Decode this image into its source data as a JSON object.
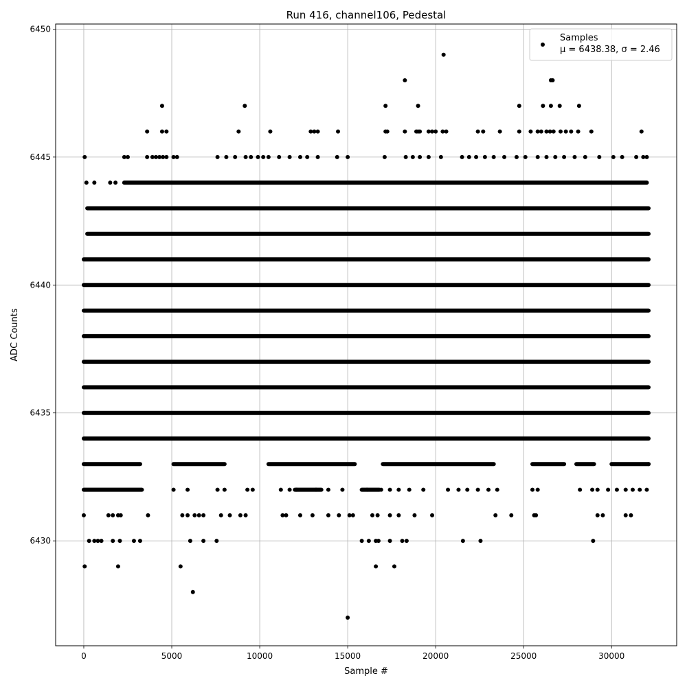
{
  "chart_data": {
    "type": "scatter",
    "title": "Run 416, channel106, Pedestal",
    "xlabel": "Sample #",
    "ylabel": "ADC Counts",
    "xlim": [
      -1600,
      33700
    ],
    "ylim": [
      6425.9,
      6450.2
    ],
    "x_ticks": [
      0,
      5000,
      10000,
      15000,
      20000,
      25000,
      30000
    ],
    "y_ticks": [
      6430,
      6435,
      6440,
      6445,
      6450
    ],
    "grid": true,
    "legend_position": "top-right",
    "marker_color": "#000000",
    "series": [
      {
        "name": "Samples",
        "legend_stats": "μ = 6438.38, σ = 2.46",
        "sample_count": 32100,
        "levels": [
          {
            "y": 6434,
            "x_ranges": [
              [
                0,
                32100
              ]
            ]
          },
          {
            "y": 6435,
            "x_ranges": [
              [
                0,
                32100
              ]
            ]
          },
          {
            "y": 6436,
            "x_ranges": [
              [
                0,
                32100
              ]
            ]
          },
          {
            "y": 6437,
            "x_ranges": [
              [
                0,
                32100
              ]
            ]
          },
          {
            "y": 6438,
            "x_ranges": [
              [
                0,
                32100
              ]
            ]
          },
          {
            "y": 6439,
            "x_ranges": [
              [
                0,
                32100
              ]
            ]
          },
          {
            "y": 6440,
            "x_ranges": [
              [
                0,
                32100
              ]
            ]
          },
          {
            "y": 6441,
            "x_ranges": [
              [
                0,
                32100
              ]
            ]
          },
          {
            "y": 6442,
            "x_ranges": [
              [
                200,
                32100
              ]
            ]
          }
        ],
        "points": [
          [
            50,
            6429
          ],
          [
            1950,
            6429
          ],
          [
            5500,
            6429
          ],
          [
            16600,
            6429
          ],
          [
            17650,
            6429
          ],
          [
            6200,
            6428
          ],
          [
            15000,
            6427
          ],
          [
            50,
            6445
          ],
          [
            20450,
            6449
          ],
          [
            18250,
            6448
          ],
          [
            26550,
            6448
          ],
          [
            26650,
            6448
          ],
          [
            4450,
            6447
          ],
          [
            9150,
            6447
          ],
          [
            17150,
            6447
          ],
          [
            19000,
            6447
          ],
          [
            24750,
            6447
          ],
          [
            26100,
            6447
          ],
          [
            26550,
            6447
          ],
          [
            27050,
            6447
          ],
          [
            28150,
            6447
          ],
          [
            3600,
            6446
          ],
          [
            4450,
            6446
          ],
          [
            4700,
            6446
          ],
          [
            8800,
            6446
          ],
          [
            10600,
            6446
          ],
          [
            12900,
            6446
          ],
          [
            13100,
            6446
          ],
          [
            13300,
            6446
          ],
          [
            14450,
            6446
          ],
          [
            17150,
            6446
          ],
          [
            17250,
            6446
          ],
          [
            18250,
            6446
          ],
          [
            18900,
            6446
          ],
          [
            19000,
            6446
          ],
          [
            19100,
            6446
          ],
          [
            19600,
            6446
          ],
          [
            19800,
            6446
          ],
          [
            20000,
            6446
          ],
          [
            20400,
            6446
          ],
          [
            20600,
            6446
          ],
          [
            22400,
            6446
          ],
          [
            22700,
            6446
          ],
          [
            23650,
            6446
          ],
          [
            24750,
            6446
          ],
          [
            25400,
            6446
          ],
          [
            25800,
            6446
          ],
          [
            26000,
            6446
          ],
          [
            26300,
            6446
          ],
          [
            26500,
            6446
          ],
          [
            26700,
            6446
          ],
          [
            27100,
            6446
          ],
          [
            27400,
            6446
          ],
          [
            27700,
            6446
          ],
          [
            28100,
            6446
          ],
          [
            28850,
            6446
          ],
          [
            31700,
            6446
          ],
          [
            2300,
            6445
          ],
          [
            2500,
            6445
          ],
          [
            3600,
            6445
          ],
          [
            3900,
            6445
          ],
          [
            4100,
            6445
          ],
          [
            4300,
            6445
          ],
          [
            4500,
            6445
          ],
          [
            4700,
            6445
          ],
          [
            5100,
            6445
          ],
          [
            5300,
            6445
          ],
          [
            7600,
            6445
          ],
          [
            8100,
            6445
          ],
          [
            8600,
            6445
          ],
          [
            9200,
            6445
          ],
          [
            9500,
            6445
          ],
          [
            9900,
            6445
          ],
          [
            10200,
            6445
          ],
          [
            10500,
            6445
          ],
          [
            11100,
            6445
          ],
          [
            11700,
            6445
          ],
          [
            12300,
            6445
          ],
          [
            12700,
            6445
          ],
          [
            13300,
            6445
          ],
          [
            14400,
            6445
          ],
          [
            15000,
            6445
          ],
          [
            17100,
            6445
          ],
          [
            18300,
            6445
          ],
          [
            18700,
            6445
          ],
          [
            19100,
            6445
          ],
          [
            19600,
            6445
          ],
          [
            20300,
            6445
          ],
          [
            21500,
            6445
          ],
          [
            21900,
            6445
          ],
          [
            22300,
            6445
          ],
          [
            22800,
            6445
          ],
          [
            23300,
            6445
          ],
          [
            23900,
            6445
          ],
          [
            24600,
            6445
          ],
          [
            25100,
            6445
          ],
          [
            25800,
            6445
          ],
          [
            26300,
            6445
          ],
          [
            26800,
            6445
          ],
          [
            27300,
            6445
          ],
          [
            27900,
            6445
          ],
          [
            28500,
            6445
          ],
          [
            29300,
            6445
          ],
          [
            30100,
            6445
          ],
          [
            30600,
            6445
          ],
          [
            31400,
            6445
          ],
          [
            31800,
            6445
          ],
          [
            32000,
            6445
          ],
          [
            300,
            6430
          ],
          [
            600,
            6430
          ],
          [
            800,
            6430
          ],
          [
            1000,
            6430
          ],
          [
            1650,
            6430
          ],
          [
            2050,
            6430
          ],
          [
            2850,
            6430
          ],
          [
            3200,
            6430
          ],
          [
            6050,
            6430
          ],
          [
            6800,
            6430
          ],
          [
            7550,
            6430
          ],
          [
            15800,
            6430
          ],
          [
            16200,
            6430
          ],
          [
            16600,
            6430
          ],
          [
            16750,
            6430
          ],
          [
            17400,
            6430
          ],
          [
            18100,
            6430
          ],
          [
            18350,
            6430
          ],
          [
            21550,
            6430
          ],
          [
            22550,
            6430
          ],
          [
            28950,
            6430
          ],
          [
            0,
            6431
          ],
          [
            1400,
            6431
          ],
          [
            1650,
            6431
          ],
          [
            1950,
            6431
          ],
          [
            2100,
            6431
          ],
          [
            3650,
            6431
          ],
          [
            5600,
            6431
          ],
          [
            5900,
            6431
          ],
          [
            6300,
            6431
          ],
          [
            6550,
            6431
          ],
          [
            6800,
            6431
          ],
          [
            7800,
            6431
          ],
          [
            8300,
            6431
          ],
          [
            8900,
            6431
          ],
          [
            9200,
            6431
          ],
          [
            11300,
            6431
          ],
          [
            11500,
            6431
          ],
          [
            12300,
            6431
          ],
          [
            13000,
            6431
          ],
          [
            13900,
            6431
          ],
          [
            14500,
            6431
          ],
          [
            15100,
            6431
          ],
          [
            15300,
            6431
          ],
          [
            16400,
            6431
          ],
          [
            16700,
            6431
          ],
          [
            17400,
            6431
          ],
          [
            17900,
            6431
          ],
          [
            18800,
            6431
          ],
          [
            19800,
            6431
          ],
          [
            23400,
            6431
          ],
          [
            24300,
            6431
          ],
          [
            25600,
            6431
          ],
          [
            25700,
            6431
          ],
          [
            29200,
            6431
          ],
          [
            29500,
            6431
          ],
          [
            30800,
            6431
          ],
          [
            31100,
            6431
          ],
          [
            5100,
            6432
          ],
          [
            5900,
            6432
          ],
          [
            7600,
            6432
          ],
          [
            8000,
            6432
          ],
          [
            9300,
            6432
          ],
          [
            9600,
            6432
          ],
          [
            11200,
            6432
          ],
          [
            11700,
            6432
          ],
          [
            12100,
            6432
          ],
          [
            13200,
            6432
          ],
          [
            13900,
            6432
          ],
          [
            14700,
            6432
          ],
          [
            16100,
            6432
          ],
          [
            16900,
            6432
          ],
          [
            17400,
            6432
          ],
          [
            17900,
            6432
          ],
          [
            18500,
            6432
          ],
          [
            19300,
            6432
          ],
          [
            20700,
            6432
          ],
          [
            21300,
            6432
          ],
          [
            21800,
            6432
          ],
          [
            22400,
            6432
          ],
          [
            23000,
            6432
          ],
          [
            23500,
            6432
          ],
          [
            25500,
            6432
          ],
          [
            25800,
            6432
          ],
          [
            28200,
            6432
          ],
          [
            28900,
            6432
          ],
          [
            29200,
            6432
          ],
          [
            29800,
            6432
          ],
          [
            30300,
            6432
          ],
          [
            30800,
            6432
          ],
          [
            31200,
            6432
          ],
          [
            31600,
            6432
          ],
          [
            32000,
            6432
          ],
          [
            150,
            6444
          ],
          [
            600,
            6444
          ],
          [
            1500,
            6444
          ],
          [
            1800,
            6444
          ],
          [
            32100,
            6433
          ]
        ],
        "dense_bands": [
          {
            "y": 6432,
            "x_ranges": [
              [
                0,
                3300
              ],
              [
                12000,
                13500
              ],
              [
                15800,
                16800
              ]
            ]
          },
          {
            "y": 6433,
            "x_ranges": [
              [
                0,
                3200
              ],
              [
                5100,
                8000
              ],
              [
                10500,
                15400
              ],
              [
                17000,
                23300
              ],
              [
                25500,
                27300
              ],
              [
                28000,
                29000
              ],
              [
                30000,
                32100
              ]
            ]
          },
          {
            "y": 6443,
            "x_ranges": [
              [
                200,
                32100
              ]
            ]
          },
          {
            "y": 6444,
            "x_ranges": [
              [
                2300,
                32000
              ]
            ]
          }
        ]
      }
    ]
  }
}
